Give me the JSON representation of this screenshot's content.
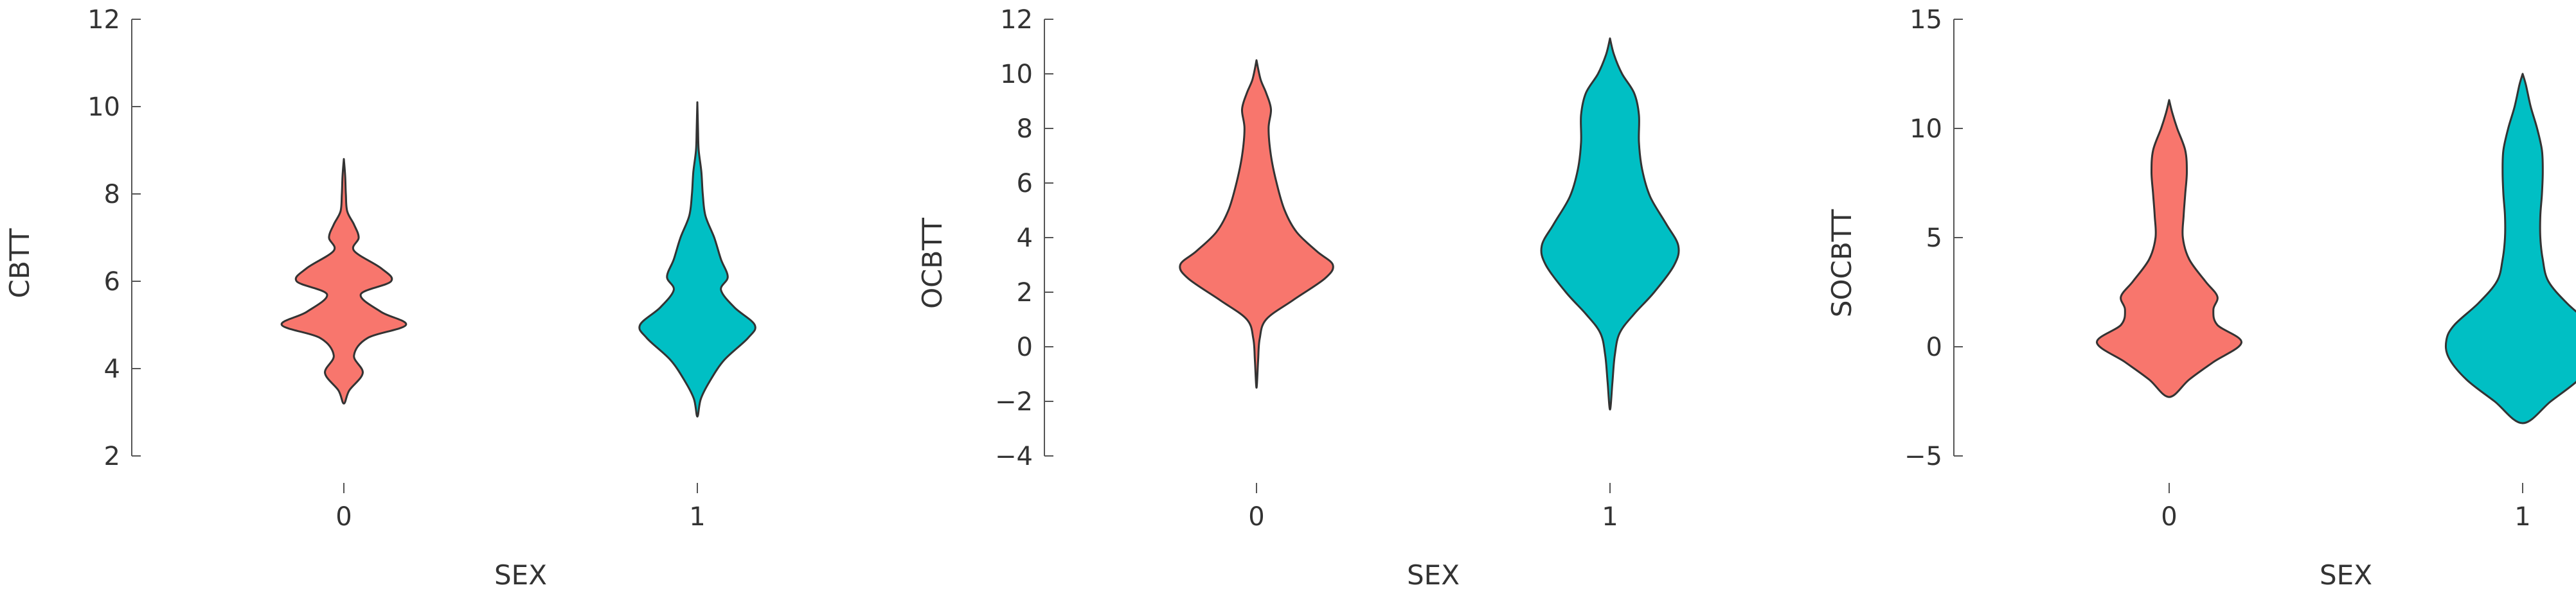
{
  "colors": {
    "group_0": "#F8766D",
    "group_1": "#00BFC4",
    "outline": "#333333",
    "axis": "#555555"
  },
  "chart_data": [
    {
      "type": "violin",
      "xlabel": "SEX",
      "ylabel": "CBTT",
      "categories": [
        "0",
        "1"
      ],
      "ylim": [
        2,
        12
      ],
      "yticks": [
        2,
        4,
        6,
        8,
        10,
        12
      ],
      "grid": false,
      "legend": "none",
      "series": [
        {
          "category": "0",
          "color": "#F8766D",
          "range": [
            3.2,
            8.8
          ],
          "density": [
            [
              3.2,
              0.0
            ],
            [
              3.5,
              0.08
            ],
            [
              3.9,
              0.28
            ],
            [
              4.3,
              0.15
            ],
            [
              4.7,
              0.35
            ],
            [
              5.0,
              0.92
            ],
            [
              5.3,
              0.55
            ],
            [
              5.7,
              0.25
            ],
            [
              6.0,
              0.7
            ],
            [
              6.3,
              0.55
            ],
            [
              6.7,
              0.15
            ],
            [
              7.0,
              0.22
            ],
            [
              7.3,
              0.15
            ],
            [
              7.6,
              0.05
            ],
            [
              8.0,
              0.03
            ],
            [
              8.4,
              0.02
            ],
            [
              8.8,
              0.0
            ]
          ]
        },
        {
          "category": "1",
          "color": "#00BFC4",
          "range": [
            2.9,
            10.1
          ],
          "density": [
            [
              2.9,
              0.0
            ],
            [
              3.3,
              0.05
            ],
            [
              3.7,
              0.18
            ],
            [
              4.2,
              0.4
            ],
            [
              4.7,
              0.75
            ],
            [
              5.0,
              0.85
            ],
            [
              5.4,
              0.55
            ],
            [
              5.8,
              0.35
            ],
            [
              6.1,
              0.45
            ],
            [
              6.5,
              0.35
            ],
            [
              7.0,
              0.25
            ],
            [
              7.5,
              0.12
            ],
            [
              8.0,
              0.08
            ],
            [
              8.5,
              0.06
            ],
            [
              9.0,
              0.02
            ],
            [
              9.5,
              0.01
            ],
            [
              10.1,
              0.0
            ]
          ]
        }
      ]
    },
    {
      "type": "violin",
      "xlabel": "SEX",
      "ylabel": "OCBTT",
      "categories": [
        "0",
        "1"
      ],
      "ylim": [
        -4,
        12
      ],
      "yticks": [
        -4,
        -2,
        0,
        2,
        4,
        6,
        8,
        10,
        12
      ],
      "grid": false,
      "legend": "none",
      "series": [
        {
          "category": "0",
          "color": "#F8766D",
          "range": [
            -1.5,
            10.5
          ],
          "density": [
            [
              -1.5,
              0.0
            ],
            [
              -0.5,
              0.02
            ],
            [
              0.3,
              0.04
            ],
            [
              1.0,
              0.12
            ],
            [
              1.7,
              0.45
            ],
            [
              2.5,
              0.85
            ],
            [
              3.0,
              0.95
            ],
            [
              3.5,
              0.75
            ],
            [
              4.2,
              0.5
            ],
            [
              5.0,
              0.35
            ],
            [
              6.0,
              0.25
            ],
            [
              7.0,
              0.18
            ],
            [
              8.0,
              0.15
            ],
            [
              8.7,
              0.18
            ],
            [
              9.3,
              0.12
            ],
            [
              9.8,
              0.05
            ],
            [
              10.5,
              0.0
            ]
          ]
        },
        {
          "category": "1",
          "color": "#00BFC4",
          "range": [
            -2.3,
            11.3
          ],
          "density": [
            [
              -2.3,
              0.0
            ],
            [
              -1.3,
              0.03
            ],
            [
              -0.3,
              0.06
            ],
            [
              0.5,
              0.12
            ],
            [
              1.2,
              0.3
            ],
            [
              2.0,
              0.55
            ],
            [
              3.0,
              0.8
            ],
            [
              3.7,
              0.85
            ],
            [
              4.5,
              0.7
            ],
            [
              5.5,
              0.5
            ],
            [
              6.5,
              0.4
            ],
            [
              7.5,
              0.36
            ],
            [
              8.5,
              0.36
            ],
            [
              9.3,
              0.3
            ],
            [
              10.0,
              0.15
            ],
            [
              10.7,
              0.05
            ],
            [
              11.3,
              0.0
            ]
          ]
        }
      ]
    },
    {
      "type": "violin",
      "xlabel": "SEX",
      "ylabel": "SOCBTT",
      "categories": [
        "0",
        "1"
      ],
      "ylim": [
        -5,
        15
      ],
      "yticks": [
        -5,
        0,
        5,
        10,
        15
      ],
      "grid": false,
      "legend": "none",
      "series": [
        {
          "category": "0",
          "color": "#F8766D",
          "range": [
            -2.3,
            11.3
          ],
          "density": [
            [
              -2.3,
              0.0
            ],
            [
              -1.5,
              0.25
            ],
            [
              -0.7,
              0.55
            ],
            [
              0.2,
              0.9
            ],
            [
              1.0,
              0.6
            ],
            [
              1.7,
              0.55
            ],
            [
              2.3,
              0.6
            ],
            [
              3.0,
              0.45
            ],
            [
              4.0,
              0.25
            ],
            [
              5.0,
              0.17
            ],
            [
              6.0,
              0.18
            ],
            [
              7.0,
              0.2
            ],
            [
              8.0,
              0.22
            ],
            [
              9.0,
              0.2
            ],
            [
              10.0,
              0.1
            ],
            [
              10.7,
              0.04
            ],
            [
              11.3,
              0.0
            ]
          ]
        },
        {
          "category": "1",
          "color": "#00BFC4",
          "range": [
            -3.5,
            12.5
          ],
          "density": [
            [
              -3.5,
              0.0
            ],
            [
              -2.5,
              0.35
            ],
            [
              -1.5,
              0.7
            ],
            [
              -0.5,
              0.92
            ],
            [
              0.3,
              0.95
            ],
            [
              1.0,
              0.85
            ],
            [
              2.0,
              0.55
            ],
            [
              3.0,
              0.32
            ],
            [
              4.0,
              0.25
            ],
            [
              5.0,
              0.22
            ],
            [
              6.0,
              0.22
            ],
            [
              7.0,
              0.24
            ],
            [
              8.0,
              0.25
            ],
            [
              9.0,
              0.24
            ],
            [
              10.0,
              0.18
            ],
            [
              11.0,
              0.1
            ],
            [
              12.0,
              0.04
            ],
            [
              12.5,
              0.0
            ]
          ]
        }
      ]
    }
  ]
}
